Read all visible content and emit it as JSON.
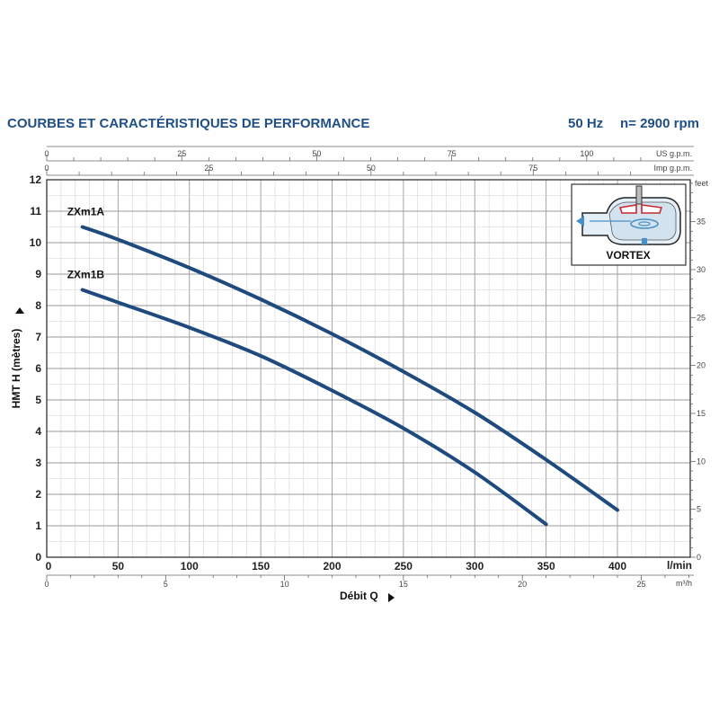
{
  "header": {
    "title": "COURBES ET CARACTÉRISTIQUES DE PERFORMANCE",
    "frequency": "50 Hz",
    "speed": "n= 2900 rpm"
  },
  "inset": {
    "label": "VORTEX",
    "accent_color": "#4a90c8",
    "impeller_color": "#c8282e"
  },
  "chart_data": {
    "type": "line",
    "xlabel": "Débit Q",
    "ylabel": "HMT H (mètres)",
    "x_unit": "l/min",
    "xlim": [
      0,
      450
    ],
    "ylim": [
      0,
      12
    ],
    "grid": true,
    "x_ticks": [
      0,
      50,
      100,
      150,
      200,
      250,
      300,
      350,
      400
    ],
    "y_ticks": [
      0,
      1,
      2,
      3,
      4,
      5,
      6,
      7,
      8,
      9,
      10,
      11,
      12
    ],
    "secondary_axes": {
      "m3h": {
        "unit": "m³/h",
        "ticks": [
          0,
          5,
          10,
          15,
          20,
          25
        ]
      },
      "us_gpm": {
        "unit": "US g.p.m.",
        "ticks": [
          0,
          25,
          50,
          75,
          100
        ]
      },
      "imp_gpm": {
        "unit": "Imp g.p.m.",
        "ticks": [
          0,
          25,
          50,
          75
        ]
      },
      "feet": {
        "unit": "feet",
        "ticks": [
          0,
          5,
          10,
          15,
          20,
          25,
          30,
          35
        ]
      }
    },
    "series": [
      {
        "name": "ZXm1A",
        "color": "#1f4a7e",
        "x": [
          25,
          50,
          100,
          150,
          200,
          250,
          300,
          350,
          400
        ],
        "y": [
          10.5,
          10.1,
          9.2,
          8.2,
          7.1,
          5.9,
          4.6,
          3.1,
          1.5
        ]
      },
      {
        "name": "ZXm1B",
        "color": "#1f4a7e",
        "x": [
          25,
          50,
          100,
          150,
          200,
          250,
          300,
          350
        ],
        "y": [
          8.5,
          8.1,
          7.3,
          6.4,
          5.3,
          4.1,
          2.7,
          1.05
        ]
      }
    ]
  }
}
